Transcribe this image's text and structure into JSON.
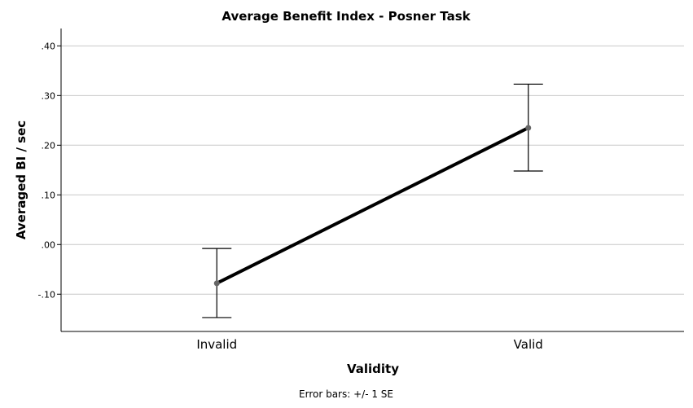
{
  "chart_data": {
    "type": "line",
    "title": "Average Benefit Index - Posner Task",
    "xlabel": "Validity",
    "ylabel": "Averaged BI / sec",
    "categories": [
      "Invalid",
      "Valid"
    ],
    "values": [
      -0.078,
      0.235
    ],
    "error": {
      "lower": [
        -0.147,
        0.148
      ],
      "upper": [
        -0.008,
        0.323
      ]
    },
    "ylim": [
      -0.175,
      0.435
    ],
    "yticks": [
      -0.1,
      0.0,
      0.1,
      0.2,
      0.3,
      0.4
    ],
    "ytick_labels": [
      "-.10",
      ".00",
      ".10",
      ".20",
      ".30",
      ".40"
    ],
    "grid": true,
    "legend": "none",
    "footnote": "Error bars: +/- 1 SE",
    "colors": {
      "line": "#000000",
      "grid": "#c8c8c8",
      "marker": "#666666"
    }
  }
}
